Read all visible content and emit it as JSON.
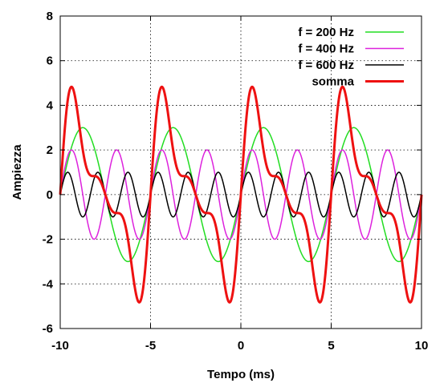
{
  "chart_data": {
    "type": "line",
    "title": "",
    "xlabel": "Tempo (ms)",
    "ylabel": "Ampiezza",
    "xlim": [
      -10,
      10
    ],
    "ylim": [
      -6,
      8
    ],
    "xticks": [
      -10,
      -5,
      0,
      5,
      10
    ],
    "yticks": [
      -6,
      -4,
      -2,
      0,
      2,
      4,
      6,
      8
    ],
    "grid": true,
    "legend_position": "top-right",
    "series": [
      {
        "name": "f = 200 Hz",
        "frequency_hz": 200,
        "amplitude": 3,
        "color": "#22dd22",
        "line_width": 1.5
      },
      {
        "name": "f = 400 Hz",
        "frequency_hz": 400,
        "amplitude": 2,
        "color": "#dd22dd",
        "line_width": 1.5
      },
      {
        "name": "f = 600 Hz",
        "frequency_hz": 600,
        "amplitude": 1,
        "color": "#000000",
        "line_width": 1.5
      },
      {
        "name": "somma",
        "components": [
          "f = 200 Hz",
          "f = 400 Hz",
          "f = 600 Hz"
        ],
        "color": "#ee1111",
        "line_width": 3
      }
    ]
  }
}
